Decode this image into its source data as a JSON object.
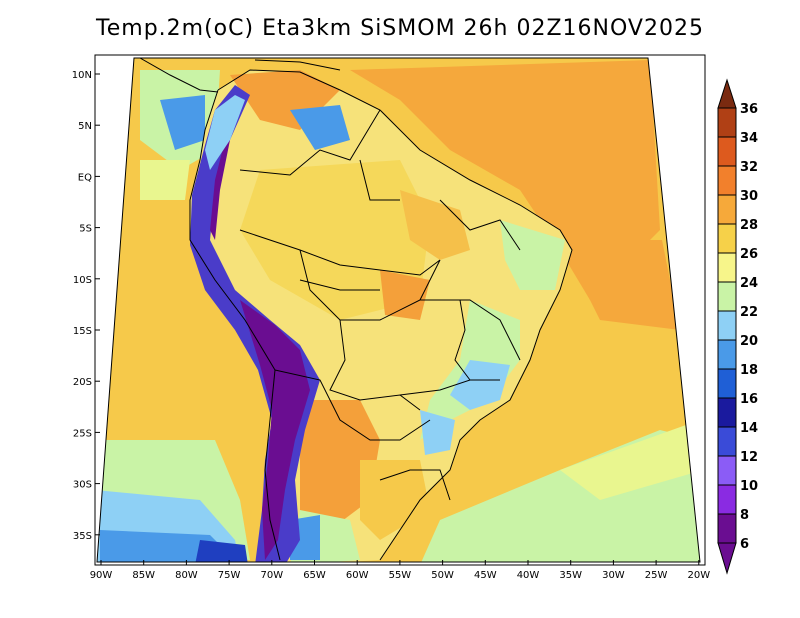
{
  "title": "Temp.2m(oC) Eta3km SiSMOM 26h 02Z16NOV2025",
  "lat_ticks": [
    "10N",
    "5N",
    "EQ",
    "5S",
    "10S",
    "15S",
    "20S",
    "25S",
    "30S",
    "35S"
  ],
  "lon_ticks": [
    "90W",
    "85W",
    "80W",
    "75W",
    "70W",
    "65W",
    "60W",
    "55W",
    "50W",
    "45W",
    "40W",
    "35W",
    "30W",
    "25W",
    "20W"
  ],
  "colorbar": {
    "labels": [
      "6",
      "8",
      "10",
      "12",
      "14",
      "16",
      "18",
      "20",
      "22",
      "24",
      "26",
      "28",
      "30",
      "32",
      "34",
      "36"
    ],
    "colors": [
      "#6a0d91",
      "#8a2be2",
      "#8b5cf6",
      "#3a4bd8",
      "#1a1a9e",
      "#1f5fd6",
      "#4a9ae8",
      "#8ed0f5",
      "#c9f3a6",
      "#f7f58a",
      "#f6d149",
      "#f6a93a",
      "#f2802c",
      "#dd5a1e",
      "#b04015",
      "#7a2a10"
    ]
  },
  "palette": {
    "ocean_base": "#f6c94a",
    "ocean_warm": "#f7a93a",
    "ocean_cool": "#c9f3a6",
    "land_base": "#f6d149",
    "andes_cold": "#6a0d91",
    "andes_mid": "#4a3cc9",
    "highland": "#8ed0f5"
  }
}
